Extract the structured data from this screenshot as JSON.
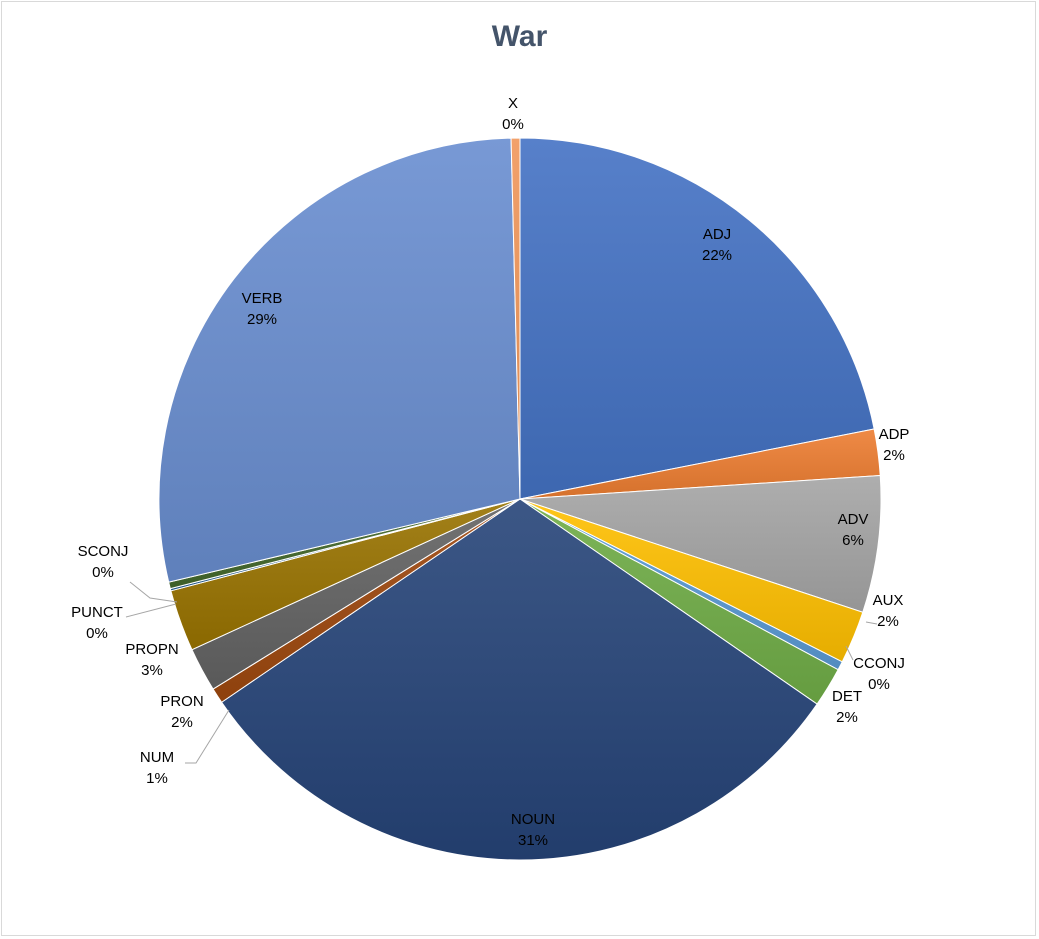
{
  "chart_data": {
    "type": "pie",
    "title": "War",
    "slices": [
      {
        "label": "ADJ",
        "value": 22.2,
        "pct_label": "22%",
        "color": "#4472c4"
      },
      {
        "label": "ADP",
        "value": 2.1,
        "pct_label": "2%",
        "color": "#ed7d31"
      },
      {
        "label": "ADV",
        "value": 6.2,
        "pct_label": "6%",
        "color": "#a5a5a5"
      },
      {
        "label": "AUX",
        "value": 2.4,
        "pct_label": "2%",
        "color": "#ffc000"
      },
      {
        "label": "CCONJ",
        "value": 0.4,
        "pct_label": "0%",
        "color": "#5b9bd5"
      },
      {
        "label": "DET",
        "value": 1.8,
        "pct_label": "2%",
        "color": "#70ad47"
      },
      {
        "label": "NOUN",
        "value": 31.3,
        "pct_label": "31%",
        "color": "#264478"
      },
      {
        "label": "NUM",
        "value": 0.7,
        "pct_label": "1%",
        "color": "#9e480e"
      },
      {
        "label": "PRON",
        "value": 2.0,
        "pct_label": "2%",
        "color": "#636363"
      },
      {
        "label": "PROPN",
        "value": 2.8,
        "pct_label": "3%",
        "color": "#997300"
      },
      {
        "label": "PUNCT",
        "value": 0.1,
        "pct_label": "0%",
        "color": "#255e91"
      },
      {
        "label": "SCONJ",
        "value": 0.3,
        "pct_label": "0%",
        "color": "#43682b"
      },
      {
        "label": "VERB",
        "value": 28.7,
        "pct_label": "29%",
        "color": "#698ed0"
      },
      {
        "label": "X",
        "value": 0.4,
        "pct_label": "0%",
        "color": "#f1975a"
      }
    ],
    "legend": "none",
    "labels": "category-and-percent"
  }
}
